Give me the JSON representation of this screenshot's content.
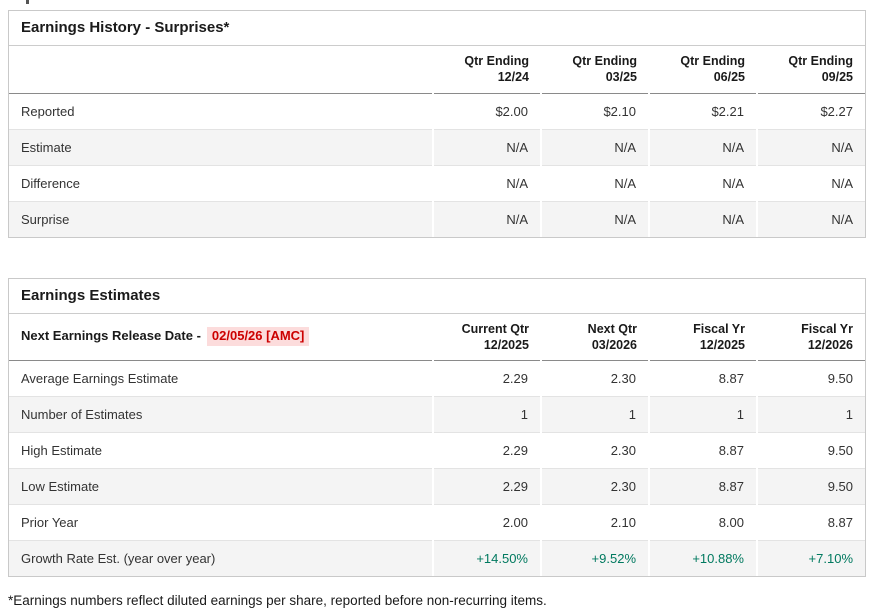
{
  "earnings_history": {
    "title": "Earnings History - Surprises*",
    "columns": [
      [
        "Qtr Ending",
        "12/24"
      ],
      [
        "Qtr Ending",
        "03/25"
      ],
      [
        "Qtr Ending",
        "06/25"
      ],
      [
        "Qtr Ending",
        "09/25"
      ]
    ],
    "rows": [
      {
        "label": "Reported",
        "values": [
          "$2.00",
          "$2.10",
          "$2.21",
          "$2.27"
        ]
      },
      {
        "label": "Estimate",
        "values": [
          "N/A",
          "N/A",
          "N/A",
          "N/A"
        ]
      },
      {
        "label": "Difference",
        "values": [
          "N/A",
          "N/A",
          "N/A",
          "N/A"
        ]
      },
      {
        "label": "Surprise",
        "values": [
          "N/A",
          "N/A",
          "N/A",
          "N/A"
        ]
      }
    ]
  },
  "earnings_estimates": {
    "title": "Earnings Estimates",
    "release_date_label": "Next Earnings Release Date -",
    "release_date_value": "02/05/26 [AMC]",
    "columns": [
      [
        "Current Qtr",
        "12/2025"
      ],
      [
        "Next Qtr",
        "03/2026"
      ],
      [
        "Fiscal Yr",
        "12/2025"
      ],
      [
        "Fiscal Yr",
        "12/2026"
      ]
    ],
    "rows": [
      {
        "label": "Average Earnings Estimate",
        "values": [
          "2.29",
          "2.30",
          "8.87",
          "9.50"
        ]
      },
      {
        "label": "Number of Estimates",
        "values": [
          "1",
          "1",
          "1",
          "1"
        ]
      },
      {
        "label": "High Estimate",
        "values": [
          "2.29",
          "2.30",
          "8.87",
          "9.50"
        ]
      },
      {
        "label": "Low Estimate",
        "values": [
          "2.29",
          "2.30",
          "8.87",
          "9.50"
        ]
      },
      {
        "label": "Prior Year",
        "values": [
          "2.00",
          "2.10",
          "8.00",
          "8.87"
        ]
      },
      {
        "label": "Growth Rate Est. (year over year)",
        "values": [
          "+14.50%",
          "+9.52%",
          "+10.88%",
          "+7.10%"
        ]
      }
    ]
  },
  "footnote": "*Earnings numbers reflect diluted earnings per share, reported before non-recurring items.",
  "colors": {
    "growth_green": "#00795f",
    "date_red": "#cc0000",
    "date_red_bg": "#fcdcdc",
    "row_alt_bg": "#f4f4f4",
    "panel_border": "#c9c9c9"
  }
}
